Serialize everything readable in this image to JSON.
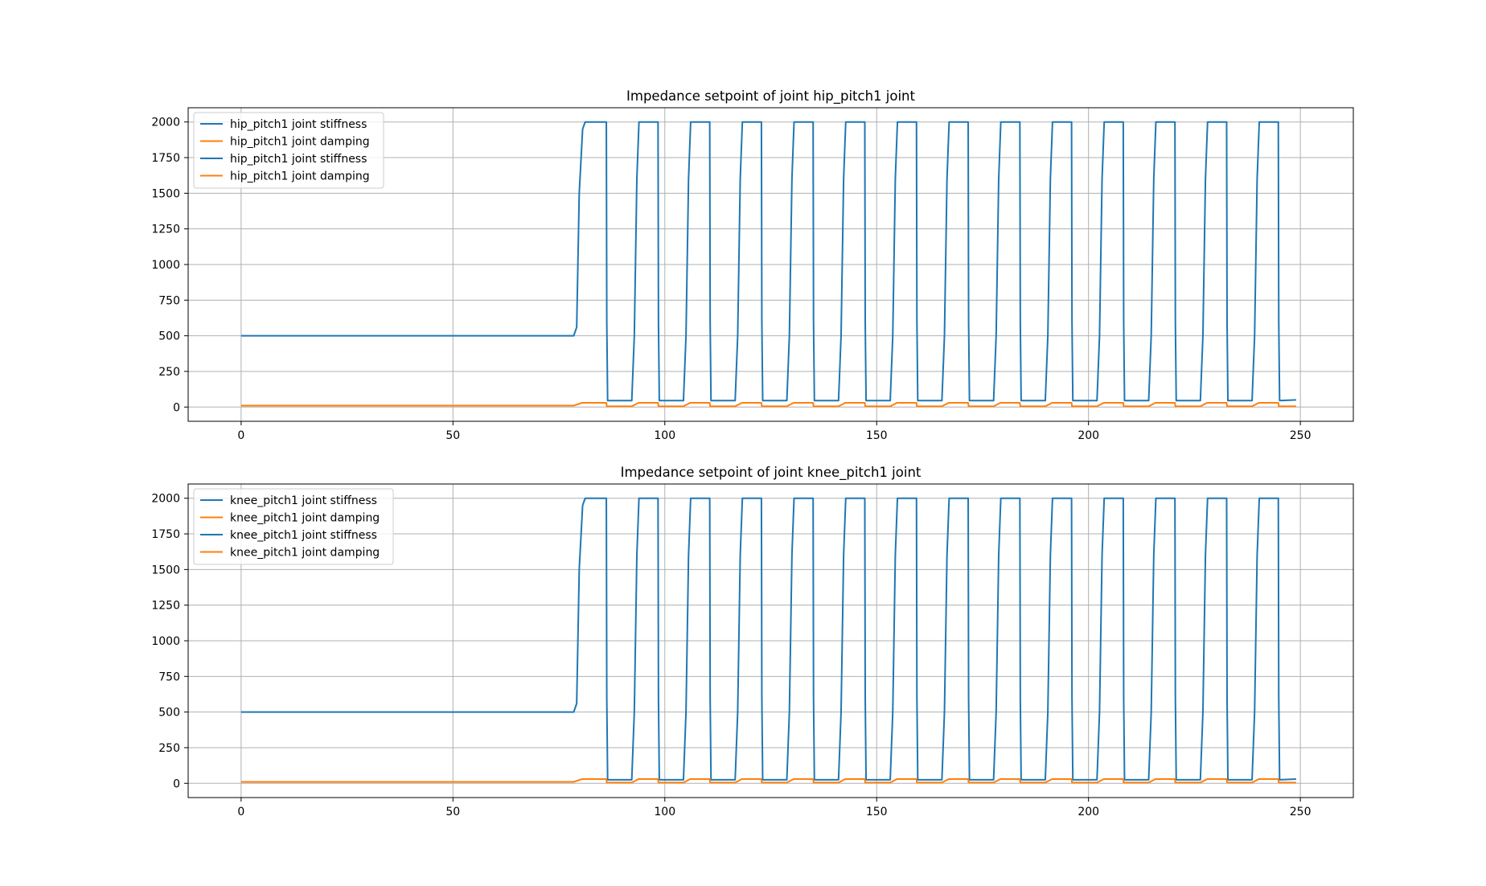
{
  "chart_data": [
    {
      "type": "line",
      "title": "Impedance setpoint of joint hip_pitch1 joint",
      "xlabel": "",
      "ylabel": "",
      "xlim": [
        -12.5,
        262.5
      ],
      "ylim": [
        -100,
        2100
      ],
      "xticks": [
        0,
        50,
        100,
        150,
        200,
        250
      ],
      "yticks": [
        0,
        250,
        500,
        750,
        1000,
        1250,
        1500,
        1750,
        2000
      ],
      "grid": true,
      "legend_position": "top-left",
      "legend": [
        {
          "label": "hip_pitch1 joint stiffness",
          "color": "#1f77b4"
        },
        {
          "label": "hip_pitch1 joint damping",
          "color": "#ff7f0e"
        },
        {
          "label": "hip_pitch1 joint stiffness",
          "color": "#1f77b4"
        },
        {
          "label": "hip_pitch1 joint damping",
          "color": "#ff7f0e"
        }
      ],
      "series": [
        {
          "name": "hip_pitch1 joint stiffness",
          "color": "#1f77b4",
          "x": [
            0,
            78.5,
            79.2,
            79.8,
            80.6,
            81.2,
            86.2,
            86.3,
            86.5,
            92.2,
            92.8,
            93.4,
            93.9,
            98.4,
            98.5,
            98.7,
            104.4,
            105.0,
            105.6,
            106.1,
            110.6,
            110.7,
            110.9,
            116.6,
            117.2,
            117.8,
            118.3,
            122.8,
            122.9,
            123.1,
            128.8,
            129.4,
            130.0,
            130.5,
            135.0,
            135.1,
            135.3,
            141.0,
            141.6,
            142.2,
            142.7,
            147.2,
            147.3,
            147.5,
            153.2,
            153.8,
            154.4,
            154.9,
            159.4,
            159.5,
            159.7,
            165.4,
            166.0,
            166.6,
            167.1,
            171.6,
            171.7,
            171.9,
            177.6,
            178.2,
            178.8,
            179.3,
            183.8,
            183.9,
            184.1,
            189.8,
            190.4,
            191.0,
            191.5,
            196.0,
            196.1,
            196.3,
            202.0,
            202.6,
            203.2,
            203.7,
            208.2,
            208.3,
            208.5,
            214.2,
            214.8,
            215.4,
            215.9,
            220.4,
            220.5,
            220.7,
            226.4,
            227.0,
            227.6,
            228.1,
            232.6,
            232.7,
            232.9,
            238.6,
            239.2,
            239.8,
            240.3,
            244.8,
            244.9,
            245.1,
            249
          ],
          "y": [
            500,
            500,
            560,
            1500,
            1950,
            2000,
            2000,
            600,
            45,
            45,
            500,
            1600,
            2000,
            2000,
            600,
            45,
            45,
            500,
            1600,
            2000,
            2000,
            600,
            45,
            45,
            500,
            1600,
            2000,
            2000,
            600,
            45,
            45,
            500,
            1600,
            2000,
            2000,
            600,
            45,
            45,
            500,
            1600,
            2000,
            2000,
            600,
            45,
            45,
            500,
            1600,
            2000,
            2000,
            600,
            45,
            45,
            500,
            1600,
            2000,
            2000,
            600,
            45,
            45,
            500,
            1600,
            2000,
            2000,
            600,
            45,
            45,
            500,
            1600,
            2000,
            2000,
            600,
            45,
            45,
            500,
            1600,
            2000,
            2000,
            600,
            45,
            45,
            500,
            1600,
            2000,
            2000,
            600,
            45,
            45,
            500,
            1600,
            2000,
            2000,
            600,
            45,
            45,
            500,
            1600,
            2000,
            2000,
            600,
            45,
            50
          ]
        },
        {
          "name": "hip_pitch1 joint damping",
          "color": "#ff7f0e",
          "x": [
            0,
            78.5,
            80.5,
            86.2,
            86.3,
            92.2,
            93.8,
            98.4,
            98.5,
            104.4,
            106.0,
            110.6,
            110.7,
            116.6,
            118.2,
            122.8,
            122.9,
            128.8,
            130.4,
            135.0,
            135.1,
            141.0,
            142.6,
            147.2,
            147.3,
            153.2,
            154.8,
            159.4,
            159.5,
            165.4,
            167.0,
            171.6,
            171.7,
            177.6,
            179.2,
            183.8,
            183.9,
            189.8,
            191.4,
            196.0,
            196.1,
            202.0,
            203.6,
            208.2,
            208.3,
            214.2,
            215.8,
            220.4,
            220.5,
            226.4,
            228.0,
            232.6,
            232.7,
            238.6,
            240.2,
            244.8,
            244.9,
            249
          ],
          "y": [
            10,
            10,
            30,
            30,
            5,
            5,
            30,
            30,
            5,
            5,
            30,
            30,
            5,
            5,
            30,
            30,
            5,
            5,
            30,
            30,
            5,
            5,
            30,
            30,
            5,
            5,
            30,
            30,
            5,
            5,
            30,
            30,
            5,
            5,
            30,
            30,
            5,
            5,
            30,
            30,
            5,
            5,
            30,
            30,
            5,
            5,
            30,
            30,
            5,
            5,
            30,
            30,
            5,
            5,
            30,
            30,
            5,
            5
          ]
        }
      ]
    },
    {
      "type": "line",
      "title": "Impedance setpoint of joint knee_pitch1 joint",
      "xlabel": "",
      "ylabel": "",
      "xlim": [
        -12.5,
        262.5
      ],
      "ylim": [
        -100,
        2100
      ],
      "xticks": [
        0,
        50,
        100,
        150,
        200,
        250
      ],
      "yticks": [
        0,
        250,
        500,
        750,
        1000,
        1250,
        1500,
        1750,
        2000
      ],
      "grid": true,
      "legend_position": "top-left",
      "legend": [
        {
          "label": "knee_pitch1 joint stiffness",
          "color": "#1f77b4"
        },
        {
          "label": "knee_pitch1 joint damping",
          "color": "#ff7f0e"
        },
        {
          "label": "knee_pitch1 joint stiffness",
          "color": "#1f77b4"
        },
        {
          "label": "knee_pitch1 joint damping",
          "color": "#ff7f0e"
        }
      ],
      "series": [
        {
          "name": "knee_pitch1 joint stiffness",
          "color": "#1f77b4",
          "x": [
            0,
            78.5,
            79.2,
            79.8,
            80.6,
            81.2,
            86.2,
            86.3,
            86.5,
            92.2,
            92.8,
            93.4,
            93.9,
            98.4,
            98.5,
            98.7,
            104.4,
            105.0,
            105.6,
            106.1,
            110.6,
            110.7,
            110.9,
            116.6,
            117.2,
            117.8,
            118.3,
            122.8,
            122.9,
            123.1,
            128.8,
            129.4,
            130.0,
            130.5,
            135.0,
            135.1,
            135.3,
            141.0,
            141.6,
            142.2,
            142.7,
            147.2,
            147.3,
            147.5,
            153.2,
            153.8,
            154.4,
            154.9,
            159.4,
            159.5,
            159.7,
            165.4,
            166.0,
            166.6,
            167.1,
            171.6,
            171.7,
            171.9,
            177.6,
            178.2,
            178.8,
            179.3,
            183.8,
            183.9,
            184.1,
            189.8,
            190.4,
            191.0,
            191.5,
            196.0,
            196.1,
            196.3,
            202.0,
            202.6,
            203.2,
            203.7,
            208.2,
            208.3,
            208.5,
            214.2,
            214.8,
            215.4,
            215.9,
            220.4,
            220.5,
            220.7,
            226.4,
            227.0,
            227.6,
            228.1,
            232.6,
            232.7,
            232.9,
            238.6,
            239.2,
            239.8,
            240.3,
            244.8,
            244.9,
            245.1,
            249
          ],
          "y": [
            500,
            500,
            560,
            1500,
            1950,
            2000,
            2000,
            600,
            25,
            25,
            500,
            1600,
            2000,
            2000,
            600,
            25,
            25,
            500,
            1600,
            2000,
            2000,
            600,
            25,
            25,
            500,
            1600,
            2000,
            2000,
            600,
            25,
            25,
            500,
            1600,
            2000,
            2000,
            600,
            25,
            25,
            500,
            1600,
            2000,
            2000,
            600,
            25,
            25,
            500,
            1600,
            2000,
            2000,
            600,
            25,
            25,
            500,
            1600,
            2000,
            2000,
            600,
            25,
            25,
            500,
            1600,
            2000,
            2000,
            600,
            25,
            25,
            500,
            1600,
            2000,
            2000,
            600,
            25,
            25,
            500,
            1600,
            2000,
            2000,
            600,
            25,
            25,
            500,
            1600,
            2000,
            2000,
            600,
            25,
            25,
            500,
            1600,
            2000,
            2000,
            600,
            25,
            25,
            500,
            1600,
            2000,
            2000,
            600,
            25,
            30
          ]
        },
        {
          "name": "knee_pitch1 joint damping",
          "color": "#ff7f0e",
          "x": [
            0,
            78.5,
            80.5,
            86.2,
            86.3,
            92.2,
            93.8,
            98.4,
            98.5,
            104.4,
            106.0,
            110.6,
            110.7,
            116.6,
            118.2,
            122.8,
            122.9,
            128.8,
            130.4,
            135.0,
            135.1,
            141.0,
            142.6,
            147.2,
            147.3,
            153.2,
            154.8,
            159.4,
            159.5,
            165.4,
            167.0,
            171.6,
            171.7,
            177.6,
            179.2,
            183.8,
            183.9,
            189.8,
            191.4,
            196.0,
            196.1,
            202.0,
            203.6,
            208.2,
            208.3,
            214.2,
            215.8,
            220.4,
            220.5,
            226.4,
            228.0,
            232.6,
            232.7,
            238.6,
            240.2,
            244.8,
            244.9,
            249
          ],
          "y": [
            10,
            10,
            30,
            30,
            5,
            5,
            30,
            30,
            5,
            5,
            30,
            30,
            5,
            5,
            30,
            30,
            5,
            5,
            30,
            30,
            5,
            5,
            30,
            30,
            5,
            5,
            30,
            30,
            5,
            5,
            30,
            30,
            5,
            5,
            30,
            30,
            5,
            5,
            30,
            30,
            5,
            5,
            30,
            30,
            5,
            5,
            30,
            30,
            5,
            5,
            30,
            30,
            5,
            5,
            30,
            30,
            5,
            5
          ]
        }
      ]
    }
  ]
}
